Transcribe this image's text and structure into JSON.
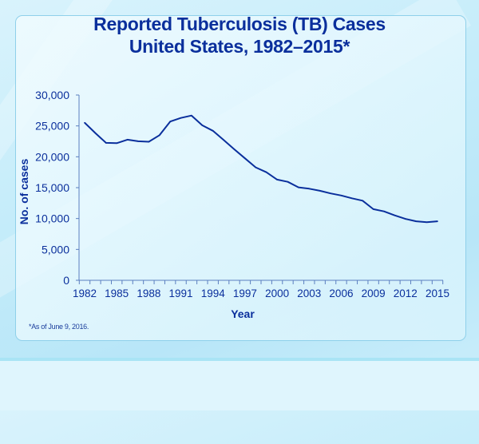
{
  "colors": {
    "line": "#0a2f9c",
    "text": "#0a2f9c",
    "axis": "#5b7fc0"
  },
  "chart_data": {
    "type": "line",
    "title": [
      "Reported Tuberculosis (TB) Cases",
      "United States, 1982–2015*"
    ],
    "xlabel": "Year",
    "ylabel": "No. of cases",
    "ylim": [
      0,
      30000
    ],
    "yticks": [
      "0",
      "5,000",
      "10,000",
      "15,000",
      "20,000",
      "25,000",
      "30,000"
    ],
    "xticks": [
      "1982",
      "1985",
      "1988",
      "1991",
      "1994",
      "1997",
      "2000",
      "2003",
      "2006",
      "2009",
      "2012",
      "2015"
    ],
    "grid": false,
    "x": [
      1982,
      1983,
      1984,
      1985,
      1986,
      1987,
      1988,
      1989,
      1990,
      1991,
      1992,
      1993,
      1994,
      1995,
      1996,
      1997,
      1998,
      1999,
      2000,
      2001,
      2002,
      2003,
      2004,
      2005,
      2006,
      2007,
      2008,
      2009,
      2010,
      2011,
      2012,
      2013,
      2014,
      2015
    ],
    "values": [
      25520,
      23846,
      22255,
      22201,
      22768,
      22517,
      22436,
      23495,
      25701,
      26283,
      26673,
      25102,
      24206,
      22726,
      21210,
      19751,
      18287,
      17499,
      16308,
      15945,
      15055,
      14835,
      14499,
      14067,
      13732,
      13282,
      12895,
      11523,
      11159,
      10510,
      9941,
      9561,
      9406,
      9557
    ],
    "footnote": "*As of June 9, 2016."
  }
}
